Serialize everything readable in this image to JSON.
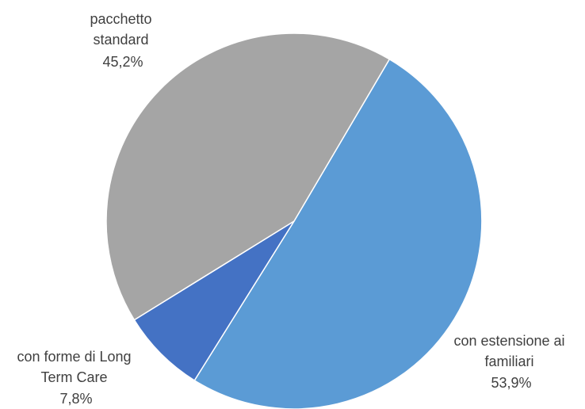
{
  "chart_data": {
    "type": "pie",
    "title": "",
    "slices": [
      {
        "name_lines": [
          "con estensione ai",
          "familiari"
        ],
        "value": 53.9,
        "value_label": "53,9%",
        "color": "#5B9BD5"
      },
      {
        "name_lines": [
          "con forme di Long",
          "Term Care"
        ],
        "value": 7.8,
        "value_label": "7,8%",
        "color": "#4472C4"
      },
      {
        "name_lines": [
          "pacchetto",
          "standard"
        ],
        "value": 45.2,
        "value_label": "45,2%",
        "color": "#A5A5A5"
      }
    ],
    "legend": "none",
    "separator_color": "#FFFFFF"
  }
}
